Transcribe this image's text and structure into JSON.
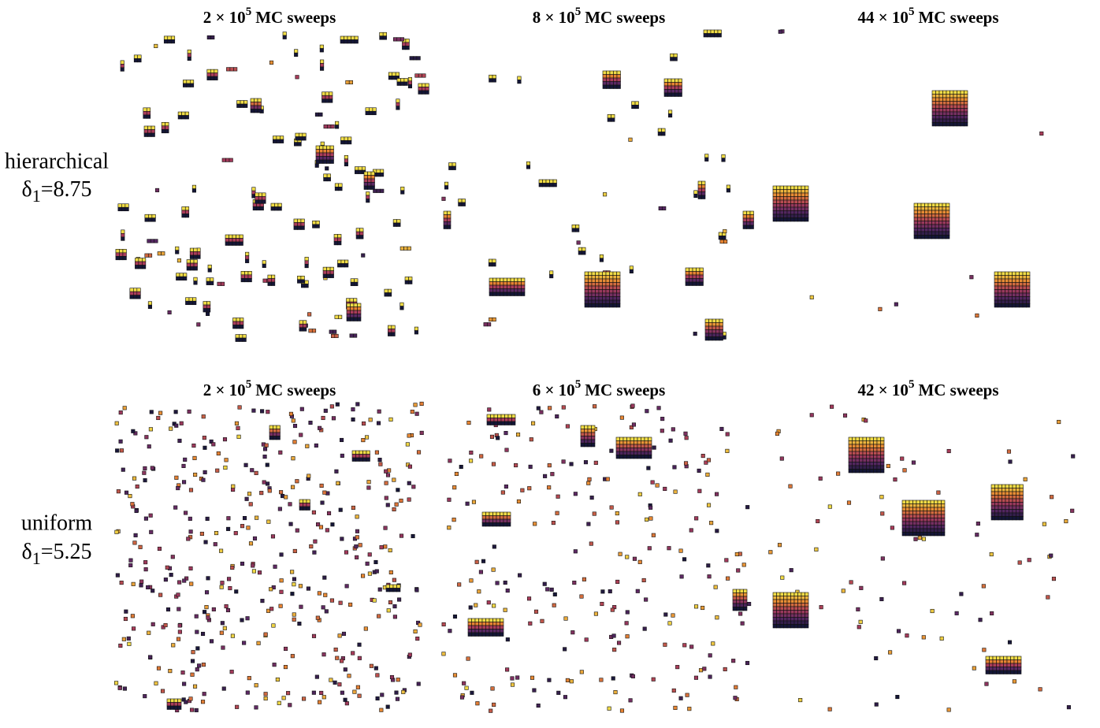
{
  "rows": [
    {
      "label": "hierarchical",
      "delta": {
        "symbol": "δ",
        "subscript": "1",
        "value": "=8.75"
      },
      "panels": [
        {
          "title": {
            "prefix": "2 × 10",
            "exponent": "5",
            "suffix": "MC sweeps"
          }
        },
        {
          "title": {
            "prefix": "8 × 10",
            "exponent": "5",
            "suffix": "MC sweeps"
          }
        },
        {
          "title": {
            "prefix": "44 × 10",
            "exponent": "5",
            "suffix": "MC sweeps"
          }
        }
      ]
    },
    {
      "label": "uniform",
      "delta": {
        "symbol": "δ",
        "subscript": "1",
        "value": "=5.25"
      },
      "panels": [
        {
          "title": {
            "prefix": "2 × 10",
            "exponent": "5",
            "suffix": "MC sweeps"
          }
        },
        {
          "title": {
            "prefix": "6 × 10",
            "exponent": "5",
            "suffix": "MC sweeps"
          }
        },
        {
          "title": {
            "prefix": "42 × 10",
            "exponent": "5",
            "suffix": "MC sweeps"
          }
        }
      ]
    }
  ]
}
